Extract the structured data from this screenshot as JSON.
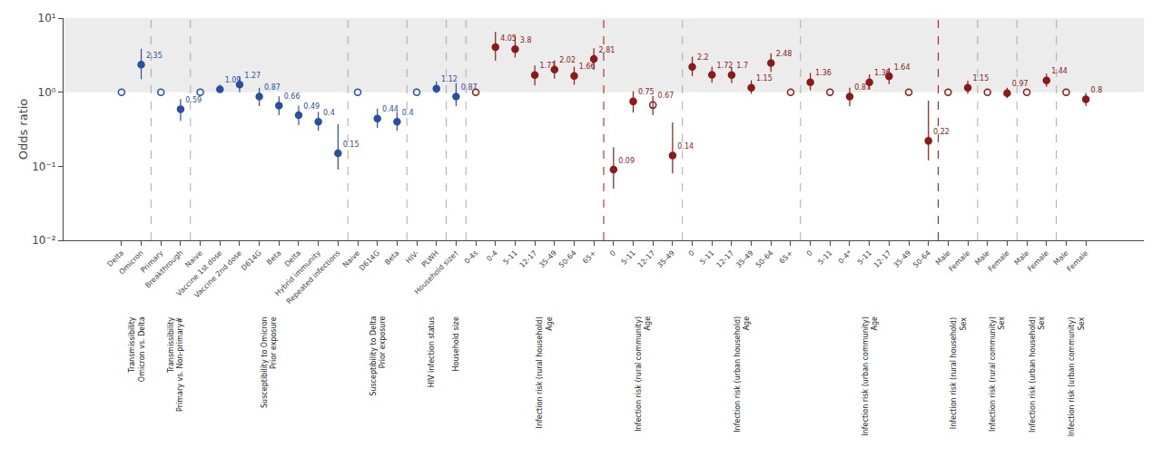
{
  "chart_data": {
    "type": "scatter",
    "y_label": "Odds ratio",
    "categories": [
      "Delta",
      "Omicron",
      "Primary",
      "Breakthrough",
      "Naive",
      "Vaccine 1st dose",
      "Vaccine 2nd dose",
      "D614G",
      "Beta",
      "Delta",
      "Hybrid immunity",
      "Repeated infections",
      "Naive",
      "D614G",
      "Beta",
      "HIV-",
      "PLWH",
      "Household size†",
      "0-4s",
      "0-4",
      "5-11",
      "12-17",
      "35-49",
      "50-64",
      "65+",
      "0",
      "5-11",
      "12-17",
      "35-49",
      "0",
      "5-11",
      "12-17",
      "35-49",
      "50-64",
      "65+",
      "0",
      "5-11",
      "0-4*",
      "5-11",
      "12-17",
      "35-49",
      "50-64",
      "Male",
      "Female",
      "Male",
      "Female",
      "Male",
      "Female",
      "Male",
      "Female"
    ],
    "values": [
      1.0,
      2.35,
      1.0,
      0.59,
      1.0,
      1.09,
      1.27,
      0.87,
      0.66,
      0.49,
      0.4,
      0.15,
      1.0,
      0.44,
      0.4,
      1.0,
      1.12,
      0.87,
      1.0,
      4.05,
      3.8,
      1.71,
      2.02,
      1.66,
      2.81,
      0.09,
      0.75,
      0.67,
      0.14,
      2.2,
      1.72,
      1.7,
      1.15,
      2.48,
      1.0,
      1.36,
      1.0,
      0.87,
      1.36,
      1.64,
      1.0,
      0.22,
      1.0,
      1.15,
      1.0,
      0.97,
      1.0,
      1.44,
      1.0,
      0.8
    ],
    "error_low": [
      null,
      0.85,
      null,
      0.18,
      null,
      0.09,
      0.27,
      0.22,
      0.17,
      0.13,
      0.1,
      0.06,
      null,
      0.11,
      0.1,
      null,
      0.14,
      0.22,
      null,
      1.4,
      0.85,
      0.48,
      0.5,
      0.4,
      0.8,
      0.04,
      0.22,
      0.18,
      0.06,
      0.55,
      0.38,
      0.38,
      0.2,
      0.6,
      null,
      0.3,
      null,
      0.22,
      0.28,
      0.35,
      null,
      0.1,
      null,
      0.2,
      null,
      0.14,
      null,
      0.26,
      null,
      0.15
    ],
    "error_high": [
      null,
      1.5,
      null,
      0.22,
      null,
      0.18,
      0.38,
      0.28,
      0.22,
      0.17,
      0.14,
      0.22,
      null,
      0.16,
      0.14,
      null,
      0.28,
      0.45,
      null,
      2.5,
      2.0,
      0.58,
      0.65,
      0.55,
      1.1,
      0.09,
      0.28,
      0.22,
      0.25,
      0.82,
      0.5,
      0.48,
      0.3,
      0.88,
      null,
      0.45,
      null,
      0.28,
      0.38,
      0.48,
      null,
      0.55,
      null,
      0.28,
      null,
      0.18,
      null,
      0.34,
      null,
      0.18
    ],
    "value_labels": [
      null,
      "2.35",
      null,
      "0.59",
      null,
      "1.09",
      "1.27",
      "0.87",
      "0.66",
      "0.49",
      "0.4",
      "0.15",
      null,
      "0.44",
      "0.4",
      null,
      "1.12",
      "0.87",
      null,
      "4.05",
      "3.8",
      "1.71",
      "2.02",
      "1.66",
      "2.81",
      "0.09",
      "0.75",
      "0.67",
      "0.14",
      "2.2",
      "1.72",
      "1.7",
      "1.15",
      "2.48",
      null,
      "1.36",
      null,
      "0.87",
      "1.36",
      "1.64",
      null,
      "0.22",
      null,
      "1.15",
      null,
      "0.97",
      null,
      "1.44",
      null,
      "0.8"
    ],
    "markers": [
      "open",
      "filled",
      "open",
      "filled",
      "open",
      "filled",
      "filled",
      "filled",
      "filled",
      "filled",
      "filled",
      "filled",
      "open",
      "filled",
      "filled",
      "open",
      "filled",
      "filled",
      "open",
      "filled",
      "filled",
      "filled",
      "filled",
      "filled",
      "filled",
      "filled",
      "filled",
      "open",
      "filled",
      "filled",
      "filled",
      "filled",
      "filled",
      "filled",
      "open",
      "filled",
      "open",
      "filled",
      "filled",
      "filled",
      "open",
      "filled",
      "open",
      "filled",
      "open",
      "filled",
      "open",
      "filled",
      "open",
      "filled"
    ],
    "colors": [
      "#2b4fa0",
      "#2b4fa0",
      "#2b4fa0",
      "#2b4fa0",
      "#2b4fa0",
      "#2b4fa0",
      "#2b4fa0",
      "#2b4fa0",
      "#2b4fa0",
      "#2b4fa0",
      "#2b4fa0",
      "#2b4fa0",
      "#2b4fa0",
      "#2b4fa0",
      "#2b4fa0",
      "#2b4fa0",
      "#2b4fa0",
      "#2b4fa0",
      "#8b1a1a",
      "#8b1a1a",
      "#8b1a1a",
      "#8b1a1a",
      "#8b1a1a",
      "#8b1a1a",
      "#8b1a1a",
      "#8b1a1a",
      "#8b1a1a",
      "#8b1a1a",
      "#8b1a1a",
      "#8b1a1a",
      "#8b1a1a",
      "#8b1a1a",
      "#8b1a1a",
      "#8b1a1a",
      "#8b1a1a",
      "#8b1a1a",
      "#8b1a1a",
      "#8b1a1a",
      "#8b1a1a",
      "#8b1a1a",
      "#8b1a1a",
      "#8b1a1a",
      "#8b1a1a",
      "#8b1a1a",
      "#8b1a1a",
      "#8b1a1a",
      "#8b1a1a",
      "#8b1a1a",
      "#8b1a1a",
      "#8b1a1a"
    ],
    "log": "y",
    "ylim": [
      0.01,
      10
    ],
    "yticks": [
      {
        "value": 0.01,
        "label": "10⁻²"
      },
      {
        "value": 0.1,
        "label": "10⁻¹"
      },
      {
        "value": 1,
        "label": "10⁰"
      },
      {
        "value": 10,
        "label": "10¹"
      }
    ],
    "grid": false,
    "shaded_range": [
      1,
      10
    ],
    "dividers": [
      {
        "x": 1.5,
        "color": "#aaaaaa"
      },
      {
        "x": 3.5,
        "color": "#aaaaaa"
      },
      {
        "x": 11.5,
        "color": "#aaaaaa"
      },
      {
        "x": 14.5,
        "color": "#aaaaaa"
      },
      {
        "x": 16.5,
        "color": "#aaaaaa"
      },
      {
        "x": 17.5,
        "color": "#aaaaaa"
      },
      {
        "x": 24.5,
        "color": "#aa1111"
      },
      {
        "x": 28.5,
        "color": "#aaaaaa"
      },
      {
        "x": 34.5,
        "color": "#aaaaaa"
      },
      {
        "x": 41.5,
        "color": "#aa1111"
      },
      {
        "x": 43.5,
        "color": "#aaaaaa"
      },
      {
        "x": 45.5,
        "color": "#aaaaaa"
      },
      {
        "x": 47.5,
        "color": "#aaaaaa"
      }
    ],
    "annotations": [
      {
        "x": 0.75,
        "lines": [
          "Transmissibility",
          "Omicron vs. Delta"
        ]
      },
      {
        "x": 2.75,
        "lines": [
          "Transmissibility",
          "Primary vs. Non-primary#"
        ]
      },
      {
        "x": 7.5,
        "lines": [
          "Susceptibility to Omicron",
          "Prior exposure"
        ]
      },
      {
        "x": 13.0,
        "lines": [
          "Susceptibility to Delta",
          "Prior exposure"
        ]
      },
      {
        "x": 15.75,
        "lines": [
          "HIV infection status"
        ]
      },
      {
        "x": 17.0,
        "lines": [
          "Household size"
        ]
      },
      {
        "x": 21.5,
        "lines": [
          "Infection risk (rural household)",
          "Age"
        ]
      },
      {
        "x": 26.5,
        "lines": [
          "Infection risk (rural community)",
          "Age"
        ]
      },
      {
        "x": 31.5,
        "lines": [
          "Infection risk (urban household)",
          "Age"
        ]
      },
      {
        "x": 38.0,
        "lines": [
          "Infection risk (urban community)",
          "Age"
        ]
      },
      {
        "x": 42.5,
        "lines": [
          "Infection risk (rural household)",
          "Sex"
        ]
      },
      {
        "x": 44.5,
        "lines": [
          "Infection risk (rural community)",
          "Sex"
        ]
      },
      {
        "x": 46.5,
        "lines": [
          "Infection risk (urban household)",
          "Sex"
        ]
      },
      {
        "x": 48.5,
        "lines": [
          "Infection risk (urban community)",
          "Sex"
        ]
      }
    ]
  }
}
